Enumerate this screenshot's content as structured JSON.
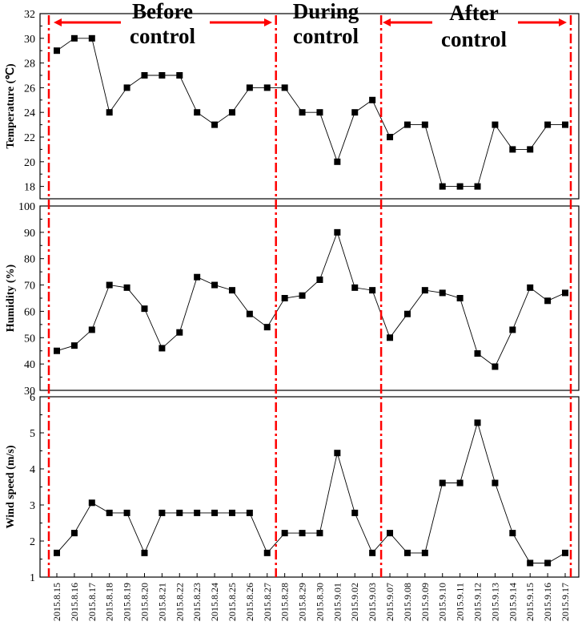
{
  "chart_data": {
    "type": "line",
    "categories": [
      "2015.8.15",
      "2015.8.16",
      "2015.8.17",
      "2015.8.18",
      "2015.8.19",
      "2015.8.20",
      "2015.8.21",
      "2015.8.22",
      "2015.8.23",
      "2015.8.24",
      "2015.8.25",
      "2015.8.26",
      "2015.8.27",
      "2015.8.28",
      "2015.8.29",
      "2015.8.30",
      "2015.9.01",
      "2015.9.02",
      "2015.9.03",
      "2015.9.07",
      "2015.9.08",
      "2015.9.09",
      "2015.9.10",
      "2015.9.11",
      "2015.9.12",
      "2015.9.13",
      "2015.9.14",
      "2015.9.15",
      "2015.9.16",
      "2015.9.17"
    ],
    "periods": [
      {
        "lines": [
          "Before",
          "control"
        ],
        "start": "2015.8.15",
        "end": "2015.8.27"
      },
      {
        "lines": [
          "During",
          "control"
        ],
        "start": "2015.8.28",
        "end": "2015.9.03"
      },
      {
        "lines": [
          "After",
          "control"
        ],
        "start": "2015.9.07",
        "end": "2015.9.17"
      }
    ],
    "panels": [
      {
        "ylabel": "Temperature (℃)",
        "ylim": [
          17,
          32
        ],
        "yticks": [
          18,
          20,
          22,
          24,
          26,
          28,
          30,
          32
        ],
        "values": [
          29,
          30,
          30,
          24,
          26,
          27,
          27,
          27,
          24,
          23,
          24,
          26,
          26,
          26,
          24,
          24,
          20,
          24,
          25,
          22,
          23,
          23,
          18,
          18,
          18,
          23,
          21,
          21,
          23,
          23
        ]
      },
      {
        "ylabel": "Humidity (%)",
        "ylim": [
          30,
          100
        ],
        "yticks": [
          30,
          40,
          50,
          60,
          70,
          80,
          90,
          100
        ],
        "values": [
          45,
          47,
          53,
          70,
          69,
          61,
          46,
          52,
          73,
          70,
          68,
          59,
          54,
          65,
          66,
          72,
          90,
          69,
          68,
          50,
          59,
          68,
          67,
          65,
          44,
          39,
          53,
          69,
          64,
          67
        ]
      },
      {
        "ylabel": "Wind speed (m/s)",
        "ylim": [
          1,
          6
        ],
        "yticks": [
          1,
          2,
          3,
          4,
          5,
          6
        ],
        "values": [
          1.67,
          2.22,
          3.06,
          2.78,
          2.78,
          1.67,
          2.78,
          2.78,
          2.78,
          2.78,
          2.78,
          2.78,
          1.67,
          2.22,
          2.22,
          2.22,
          4.44,
          2.78,
          1.67,
          2.22,
          1.67,
          1.67,
          3.61,
          3.61,
          5.28,
          3.61,
          2.22,
          1.39,
          1.39,
          1.67
        ]
      }
    ],
    "colors": {
      "series": "#000000",
      "divider": "#ff0000",
      "axis": "#000000"
    }
  }
}
